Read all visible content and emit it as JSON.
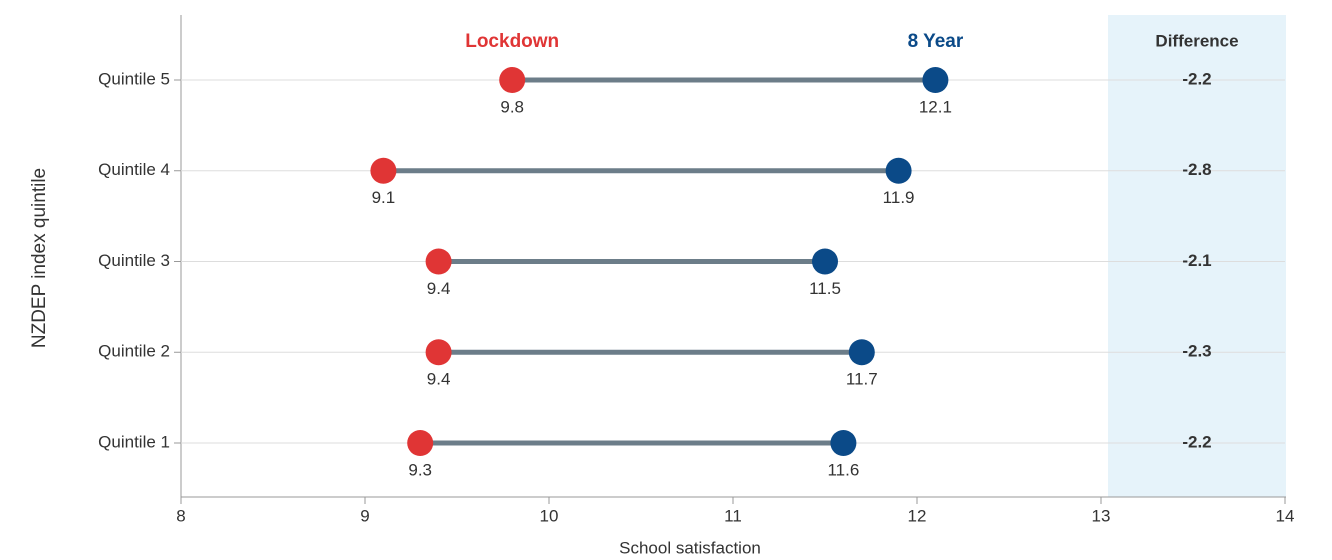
{
  "chart_data": {
    "type": "dumbbell",
    "x_label": "School satisfaction",
    "y_label": "NZDEP index quintile",
    "categories": [
      "Quintile 5",
      "Quintile 4",
      "Quintile 3",
      "Quintile 2",
      "Quintile 1"
    ],
    "series": [
      {
        "name": "Lockdown",
        "color": "#e03535",
        "values": [
          9.8,
          9.1,
          9.4,
          9.4,
          9.3
        ]
      },
      {
        "name": "8 Year",
        "color": "#0b4a88",
        "values": [
          12.1,
          11.9,
          11.5,
          11.7,
          11.6
        ]
      }
    ],
    "connector_color": "#6c7d89",
    "difference_header": "Difference",
    "differences": [
      -2.2,
      -2.8,
      -2.1,
      -2.3,
      -2.2
    ],
    "xlim": [
      8,
      14
    ],
    "xticks": [
      8,
      9,
      10,
      11,
      12,
      13,
      14
    ],
    "grid": true
  }
}
